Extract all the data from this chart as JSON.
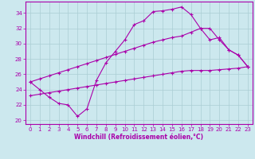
{
  "xlabel": "Windchill (Refroidissement éolien,°C)",
  "bg_color": "#cce8ee",
  "line_color": "#aa00aa",
  "xlim": [
    -0.5,
    23.5
  ],
  "ylim": [
    19.5,
    35.5
  ],
  "xticks": [
    0,
    1,
    2,
    3,
    4,
    5,
    6,
    7,
    8,
    9,
    10,
    11,
    12,
    13,
    14,
    15,
    16,
    17,
    18,
    19,
    20,
    21,
    22,
    23
  ],
  "yticks": [
    20,
    22,
    24,
    26,
    28,
    30,
    32,
    34
  ],
  "series1_x": [
    0,
    1,
    2,
    3,
    4,
    5,
    6,
    7,
    8,
    9,
    10,
    11,
    12,
    13,
    14,
    15,
    16,
    17,
    18,
    19,
    20,
    21,
    22,
    23
  ],
  "series1_y": [
    25.0,
    24.0,
    23.0,
    22.2,
    22.0,
    20.5,
    21.5,
    25.2,
    27.5,
    29.0,
    30.5,
    32.5,
    33.0,
    34.2,
    34.3,
    34.5,
    34.8,
    33.8,
    32.0,
    30.5,
    30.8,
    29.2,
    28.5,
    27.0
  ],
  "series2_x": [
    0,
    1,
    2,
    3,
    4,
    5,
    6,
    7,
    8,
    9,
    10,
    11,
    12,
    13,
    14,
    15,
    16,
    17,
    18,
    19,
    20,
    21,
    22,
    23
  ],
  "series2_y": [
    23.2,
    23.4,
    23.6,
    23.8,
    24.0,
    24.2,
    24.4,
    24.6,
    24.8,
    25.0,
    25.2,
    25.4,
    25.6,
    25.8,
    26.0,
    26.2,
    26.4,
    26.5,
    26.5,
    26.5,
    26.6,
    26.7,
    26.8,
    27.0
  ],
  "series3_x": [
    0,
    1,
    2,
    3,
    4,
    5,
    6,
    7,
    8,
    9,
    10,
    11,
    12,
    13,
    14,
    15,
    16,
    17,
    18,
    19,
    20,
    21,
    22,
    23
  ],
  "series3_y": [
    25.0,
    25.4,
    25.8,
    26.2,
    26.6,
    27.0,
    27.4,
    27.8,
    28.2,
    28.6,
    29.0,
    29.4,
    29.8,
    30.2,
    30.5,
    30.8,
    31.0,
    31.5,
    32.0,
    32.0,
    30.5,
    29.2,
    28.5,
    27.0
  ],
  "grid_color": "#aacdd4",
  "marker": "+"
}
